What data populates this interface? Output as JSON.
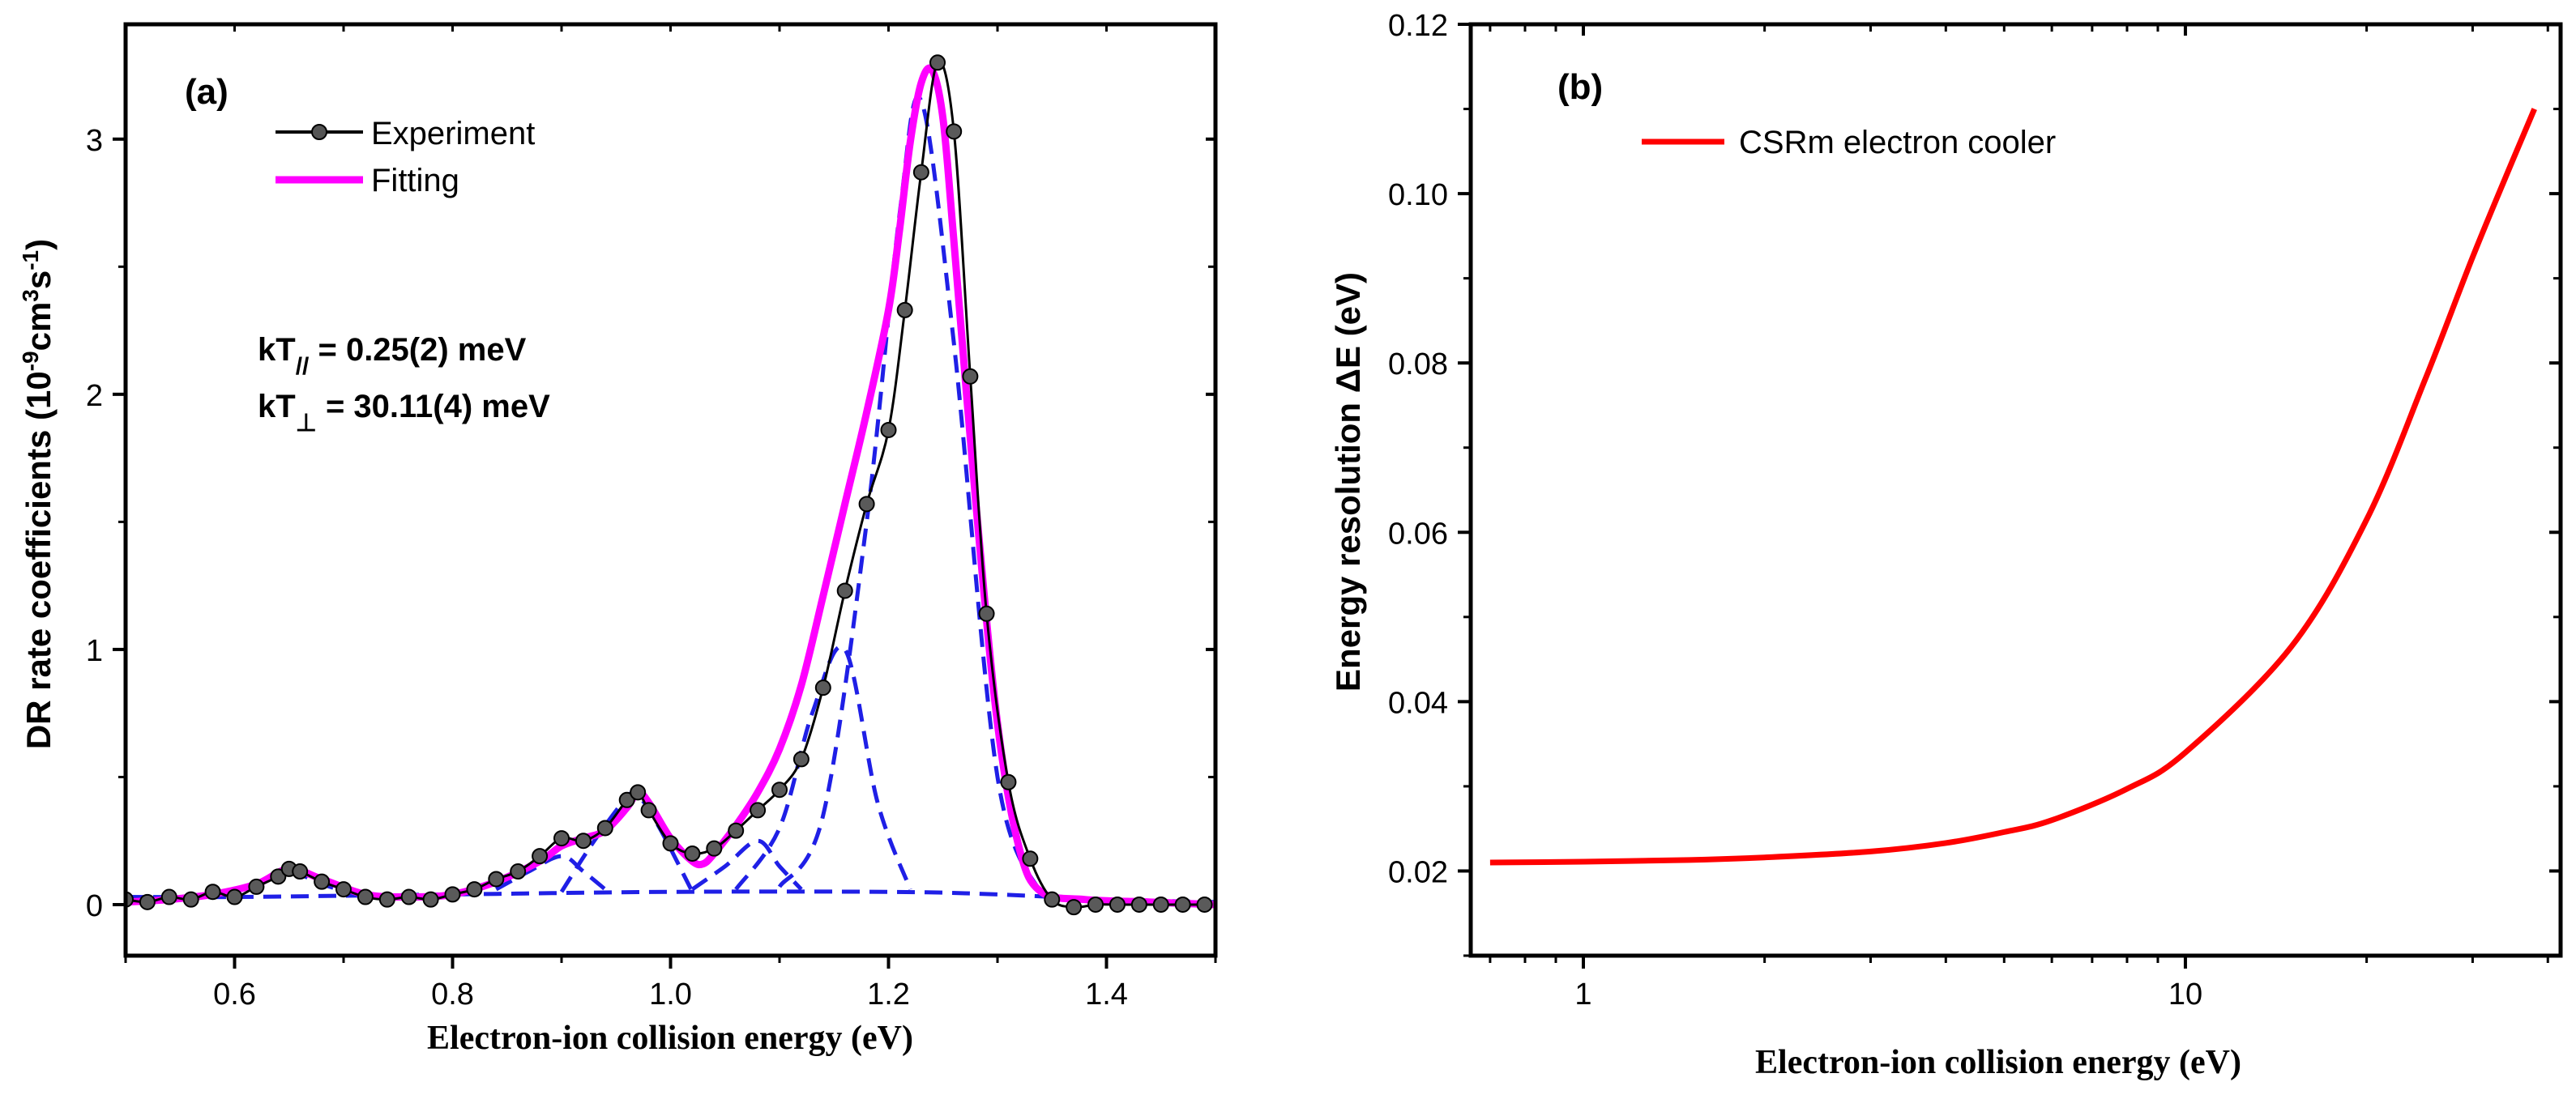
{
  "chart_data": [
    {
      "type": "line",
      "panel_label": "(a)",
      "xlabel": "Electron-ion collision energy (eV)",
      "ylabel": "DR rate coefficients (10<sup>-9</sup>cm<sup>3</sup>s<sup>-1</sup>)",
      "ylabel_parts": [
        "DR rate coefficients (10",
        "-9",
        "cm",
        "3",
        "s",
        "-1",
        ")"
      ],
      "xlim": [
        0.5,
        1.5
      ],
      "ylim": [
        -0.2,
        3.45
      ],
      "xticks": [
        0.6,
        0.8,
        1.0,
        1.2,
        1.4
      ],
      "xtick_labels": [
        "0.6",
        "0.8",
        "1.0",
        "1.2",
        "1.4"
      ],
      "yticks": [
        0,
        1,
        2,
        3
      ],
      "ytick_labels": [
        "0",
        "1",
        "2",
        "3"
      ],
      "legend": [
        "Experiment",
        "Fitting"
      ],
      "legend_position": "top-left",
      "annotations": [
        {
          "prefix": "kT",
          "sub": "//",
          "rest": "= 0.25(2) meV"
        },
        {
          "prefix": "kT",
          "sub": "⊥",
          "rest": "= 30.11(4) meV"
        }
      ],
      "colors": {
        "experiment": "#000000",
        "fitting": "#ff00ff",
        "components": "#1f1fe6"
      },
      "series": [
        {
          "name": "Experiment",
          "style": "line+markers",
          "x": [
            0.5,
            0.52,
            0.54,
            0.56,
            0.58,
            0.6,
            0.62,
            0.64,
            0.65,
            0.66,
            0.68,
            0.7,
            0.72,
            0.74,
            0.76,
            0.78,
            0.8,
            0.82,
            0.84,
            0.86,
            0.88,
            0.9,
            0.92,
            0.94,
            0.96,
            0.97,
            0.98,
            1.0,
            1.02,
            1.04,
            1.06,
            1.08,
            1.1,
            1.12,
            1.14,
            1.16,
            1.18,
            1.2,
            1.215,
            1.23,
            1.245,
            1.26,
            1.275,
            1.29,
            1.31,
            1.33,
            1.35,
            1.37,
            1.39,
            1.41,
            1.43,
            1.45,
            1.47,
            1.49
          ],
          "values": [
            0.02,
            0.01,
            0.03,
            0.02,
            0.05,
            0.03,
            0.07,
            0.11,
            0.14,
            0.13,
            0.09,
            0.06,
            0.03,
            0.02,
            0.03,
            0.02,
            0.04,
            0.06,
            0.1,
            0.13,
            0.19,
            0.26,
            0.25,
            0.3,
            0.41,
            0.44,
            0.37,
            0.24,
            0.2,
            0.22,
            0.29,
            0.37,
            0.45,
            0.57,
            0.85,
            1.23,
            1.57,
            1.86,
            2.33,
            2.87,
            3.3,
            3.03,
            2.07,
            1.14,
            0.48,
            0.18,
            0.02,
            -0.01,
            0.0,
            0.0,
            0.0,
            0.0,
            0.0,
            0.0
          ]
        },
        {
          "name": "Fitting",
          "style": "line",
          "x": [
            0.5,
            0.54,
            0.58,
            0.62,
            0.65,
            0.68,
            0.72,
            0.76,
            0.8,
            0.84,
            0.88,
            0.9,
            0.92,
            0.94,
            0.96,
            0.97,
            0.98,
            1.0,
            1.02,
            1.03,
            1.04,
            1.06,
            1.08,
            1.1,
            1.12,
            1.14,
            1.16,
            1.18,
            1.2,
            1.21,
            1.22,
            1.23,
            1.24,
            1.25,
            1.26,
            1.28,
            1.3,
            1.32,
            1.34,
            1.38,
            1.44,
            1.5
          ],
          "values": [
            0.01,
            0.02,
            0.04,
            0.08,
            0.14,
            0.1,
            0.04,
            0.03,
            0.04,
            0.09,
            0.17,
            0.23,
            0.26,
            0.29,
            0.38,
            0.44,
            0.4,
            0.26,
            0.17,
            0.16,
            0.2,
            0.31,
            0.44,
            0.61,
            0.86,
            1.21,
            1.57,
            1.93,
            2.33,
            2.64,
            2.99,
            3.22,
            3.27,
            3.08,
            2.6,
            1.58,
            0.71,
            0.22,
            0.05,
            0.02,
            0.01,
            0.0
          ]
        },
        {
          "name": "",
          "style": "dashed",
          "x": [
            0.5,
            0.6,
            0.8,
            1.0,
            1.2,
            1.3,
            1.4,
            1.5
          ],
          "values": [
            0.03,
            0.03,
            0.04,
            0.05,
            0.05,
            0.04,
            0.02,
            0.01
          ]
        },
        {
          "name": "",
          "style": "dashed",
          "x": [
            0.58,
            0.62,
            0.65,
            0.68,
            0.72
          ],
          "values": [
            0.03,
            0.08,
            0.13,
            0.08,
            0.03
          ]
        },
        {
          "name": "",
          "style": "dashed",
          "x": [
            0.84,
            0.87,
            0.9,
            0.92,
            0.94
          ],
          "values": [
            0.06,
            0.13,
            0.19,
            0.13,
            0.06
          ]
        },
        {
          "name": "",
          "style": "dashed",
          "x": [
            0.9,
            0.93,
            0.96,
            0.97,
            0.99,
            1.02
          ],
          "values": [
            0.05,
            0.25,
            0.42,
            0.43,
            0.3,
            0.05
          ]
        },
        {
          "name": "",
          "style": "dashed",
          "x": [
            1.02,
            1.05,
            1.08,
            1.1,
            1.12
          ],
          "values": [
            0.06,
            0.15,
            0.25,
            0.15,
            0.06
          ]
        },
        {
          "name": "",
          "style": "dashed",
          "x": [
            1.06,
            1.1,
            1.13,
            1.16,
            1.19,
            1.22
          ],
          "values": [
            0.06,
            0.3,
            0.75,
            1.0,
            0.4,
            0.06
          ]
        },
        {
          "name": "",
          "style": "dashed",
          "x": [
            1.1,
            1.14,
            1.18,
            1.21,
            1.23,
            1.26,
            1.3,
            1.34
          ],
          "values": [
            0.07,
            0.35,
            1.5,
            2.7,
            3.15,
            2.2,
            0.5,
            0.04
          ]
        }
      ]
    },
    {
      "type": "line",
      "panel_label": "(b)",
      "xlabel": "Electron-ion collision energy (eV)",
      "ylabel": "Energy resolution ΔE (eV)",
      "xscale": "log",
      "xlim": [
        0.65,
        42
      ],
      "ylim": [
        0.01,
        0.12
      ],
      "xticks": [
        1,
        10
      ],
      "xtick_labels": [
        "1",
        "10"
      ],
      "yticks": [
        0.02,
        0.04,
        0.06,
        0.08,
        0.1,
        0.12
      ],
      "ytick_labels": [
        "0.02",
        "0.04",
        "0.06",
        "0.08",
        "0.10",
        "0.12"
      ],
      "legend": [
        "CSRm electron cooler"
      ],
      "legend_position": "top-left",
      "colors": {
        "curve": "#ff0000"
      },
      "series": [
        {
          "name": "CSRm electron cooler",
          "x": [
            0.7,
            1,
            1.5,
            2,
            3,
            4,
            5,
            6,
            8,
            10,
            15,
            20,
            25,
            30,
            35,
            38
          ],
          "values": [
            0.021,
            0.0211,
            0.0213,
            0.0216,
            0.0223,
            0.0233,
            0.0246,
            0.026,
            0.0297,
            0.034,
            0.0465,
            0.0615,
            0.078,
            0.0925,
            0.104,
            0.11
          ]
        }
      ]
    }
  ]
}
